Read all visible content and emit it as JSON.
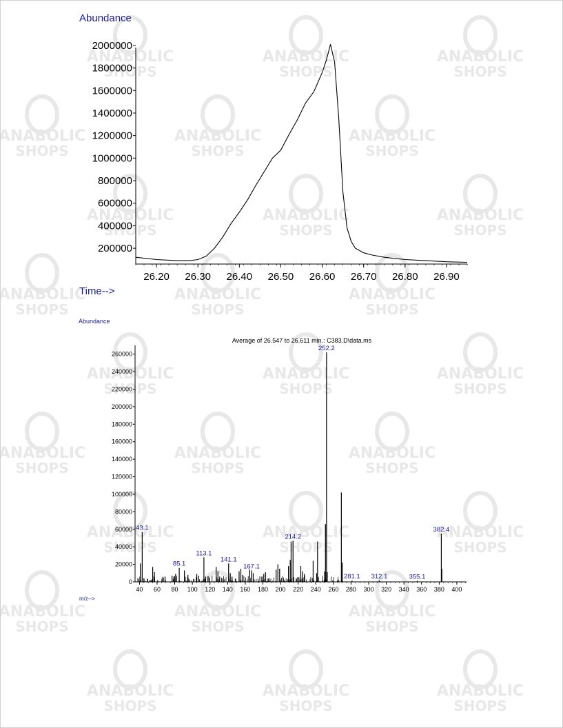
{
  "watermark": {
    "line1": "ANABOLIC",
    "line2": "SHOPS",
    "color": "#e8e8e8"
  },
  "colors": {
    "label_blue": "#1a1a8c",
    "trace": "#000000",
    "axis": "#000000"
  },
  "chart_data": [
    {
      "type": "line",
      "ylabel": "Abundance",
      "xlabel": "Time-->",
      "xlim": [
        26.15,
        26.95
      ],
      "ylim": [
        60000,
        2030000
      ],
      "x_ticks": [
        "26.20",
        "26.30",
        "26.40",
        "26.50",
        "26.60",
        "26.70",
        "26.80",
        "26.90"
      ],
      "y_ticks": [
        "200000",
        "400000",
        "600000",
        "800000",
        "1000000",
        "1200000",
        "1400000",
        "1600000",
        "1800000",
        "2000000"
      ],
      "series": [
        {
          "x": [
            26.15,
            26.2,
            26.25,
            26.28,
            26.3,
            26.32,
            26.34,
            26.36,
            26.38,
            26.4,
            26.42,
            26.44,
            26.46,
            26.48,
            26.5,
            26.52,
            26.54,
            26.56,
            26.58,
            26.6,
            26.61,
            26.62,
            26.63,
            26.64,
            26.65,
            26.66,
            26.67,
            26.68,
            26.7,
            26.72,
            26.75,
            26.8,
            26.85,
            26.9,
            26.95
          ],
          "y": [
            120000,
            100000,
            90000,
            90000,
            100000,
            130000,
            200000,
            300000,
            420000,
            520000,
            630000,
            760000,
            880000,
            1000000,
            1070000,
            1210000,
            1340000,
            1490000,
            1590000,
            1760000,
            1870000,
            2010000,
            1850000,
            1350000,
            700000,
            380000,
            260000,
            200000,
            160000,
            140000,
            120000,
            100000,
            90000,
            80000,
            75000
          ]
        }
      ]
    },
    {
      "type": "bar",
      "title": "Average of 26.547 to 26.611 min.: C383.D\\data.ms",
      "ylabel": "Abundance",
      "xlabel": "m/z-->",
      "xlim": [
        35,
        411
      ],
      "ylim": [
        0,
        270000
      ],
      "x_ticks": [
        "40",
        "60",
        "80",
        "100",
        "120",
        "140",
        "160",
        "180",
        "200",
        "220",
        "240",
        "260",
        "280",
        "300",
        "320",
        "340",
        "360",
        "380",
        "400"
      ],
      "y_ticks": [
        "0",
        "20000",
        "40000",
        "60000",
        "80000",
        "100000",
        "120000",
        "140000",
        "160000",
        "180000",
        "200000",
        "220000",
        "240000",
        "260000"
      ],
      "peaks": [
        {
          "mz": 41,
          "v": 21000
        },
        {
          "mz": 43.1,
          "v": 57000,
          "label": "43.1"
        },
        {
          "mz": 45,
          "v": 4000
        },
        {
          "mz": 55,
          "v": 17000
        },
        {
          "mz": 57,
          "v": 11000
        },
        {
          "mz": 67,
          "v": 5000
        },
        {
          "mz": 69,
          "v": 6000
        },
        {
          "mz": 77,
          "v": 7000
        },
        {
          "mz": 79,
          "v": 6000
        },
        {
          "mz": 81,
          "v": 9000
        },
        {
          "mz": 85.1,
          "v": 16000,
          "label": "85.1"
        },
        {
          "mz": 91,
          "v": 13000
        },
        {
          "mz": 95,
          "v": 8000
        },
        {
          "mz": 105,
          "v": 9000
        },
        {
          "mz": 107,
          "v": 7000
        },
        {
          "mz": 113.1,
          "v": 28000,
          "label": "113.1"
        },
        {
          "mz": 115,
          "v": 6000
        },
        {
          "mz": 119,
          "v": 5000
        },
        {
          "mz": 127,
          "v": 17000
        },
        {
          "mz": 129,
          "v": 12000
        },
        {
          "mz": 131,
          "v": 6000
        },
        {
          "mz": 141.1,
          "v": 21000,
          "label": "141.1"
        },
        {
          "mz": 143,
          "v": 10000
        },
        {
          "mz": 145,
          "v": 6000
        },
        {
          "mz": 153,
          "v": 12000
        },
        {
          "mz": 155,
          "v": 15000
        },
        {
          "mz": 157,
          "v": 8000
        },
        {
          "mz": 165,
          "v": 14000
        },
        {
          "mz": 167.1,
          "v": 13000,
          "label": "167.1"
        },
        {
          "mz": 169,
          "v": 10000
        },
        {
          "mz": 181,
          "v": 9000
        },
        {
          "mz": 183,
          "v": 11000
        },
        {
          "mz": 195,
          "v": 14000
        },
        {
          "mz": 197,
          "v": 20000
        },
        {
          "mz": 199,
          "v": 15000
        },
        {
          "mz": 209,
          "v": 18000
        },
        {
          "mz": 211,
          "v": 25000
        },
        {
          "mz": 212,
          "v": 46000
        },
        {
          "mz": 214.2,
          "v": 47000,
          "label": "214.2"
        },
        {
          "mz": 223,
          "v": 18000
        },
        {
          "mz": 225,
          "v": 12000
        },
        {
          "mz": 227,
          "v": 9000
        },
        {
          "mz": 237,
          "v": 24000
        },
        {
          "mz": 241,
          "v": 10000
        },
        {
          "mz": 242,
          "v": 46000
        },
        {
          "mz": 250,
          "v": 12000
        },
        {
          "mz": 251,
          "v": 66000
        },
        {
          "mz": 252.2,
          "v": 262000,
          "label": "252.2"
        },
        {
          "mz": 253,
          "v": 11000
        },
        {
          "mz": 269,
          "v": 102000
        },
        {
          "mz": 270,
          "v": 22000
        },
        {
          "mz": 281.1,
          "v": 1500,
          "label": "281.1"
        },
        {
          "mz": 312.1,
          "v": 1500,
          "label": "312.1"
        },
        {
          "mz": 355.1,
          "v": 1200,
          "label": "355.1"
        },
        {
          "mz": 382.4,
          "v": 55000,
          "label": "382.4"
        },
        {
          "mz": 383,
          "v": 15000
        }
      ],
      "noise_seed": 7
    }
  ]
}
